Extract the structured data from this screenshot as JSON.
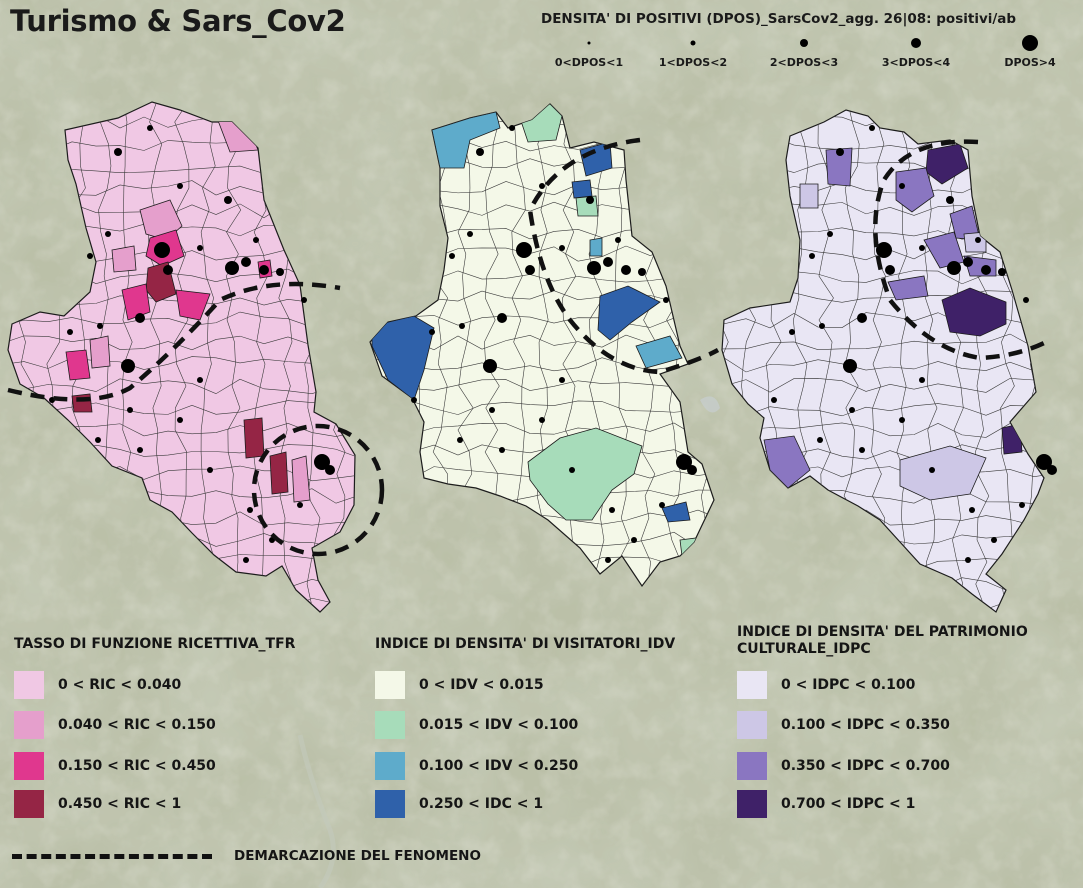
{
  "title": "Turismo & Sars_Cov2",
  "dpos_legend": {
    "title": "DENSITA' DI POSITIVI (DPOS)_SarsCov2_agg. 26|08: positivi/ab",
    "classes": [
      "0<DPOS<1",
      "1<DPOS<2",
      "2<DPOS<3",
      "3<DPOS<4",
      "DPOS>4"
    ]
  },
  "legends": [
    {
      "title": "TASSO DI FUNZIONE RICETTIVA_TFR",
      "items": [
        {
          "label": "0 < RIC < 0.040",
          "color": "#f0c8e4"
        },
        {
          "label": "0.040 < RIC < 0.150",
          "color": "#e59fcc"
        },
        {
          "label": "0.150 < RIC < 0.450",
          "color": "#e0378e"
        },
        {
          "label": "0.450 < RIC < 1",
          "color": "#952545"
        }
      ]
    },
    {
      "title": "INDICE DI DENSITA' DI VISITATORI_IDV",
      "items": [
        {
          "label": "0 < IDV < 0.015",
          "color": "#f4f8e8"
        },
        {
          "label": "0.015 < IDV < 0.100",
          "color": "#a7dcba"
        },
        {
          "label": "0.100 < IDV < 0.250",
          "color": "#5eabcb"
        },
        {
          "label": "0.250 < IDC < 1",
          "color": "#2f61aa"
        }
      ]
    },
    {
      "title_lines": [
        "INDICE DI DENSITA' DEL PATRIMONIO",
        "CULTURALE_IDPC"
      ],
      "items": [
        {
          "label": "0 < IDPC < 0.100",
          "color": "#e9e6f4"
        },
        {
          "label": "0.100 < IDPC < 0.350",
          "color": "#cdc7e6"
        },
        {
          "label": "0.350 < IDPC < 0.700",
          "color": "#8a76c1"
        },
        {
          "label": "0.700 < IDPC < 1",
          "color": "#3f2168"
        }
      ]
    }
  ],
  "demarcation_label": "DEMARCAZIONE DEL FENOMENO",
  "colors": {
    "background": "#aeb39a",
    "dots": "#000000",
    "borders": "#222222"
  }
}
